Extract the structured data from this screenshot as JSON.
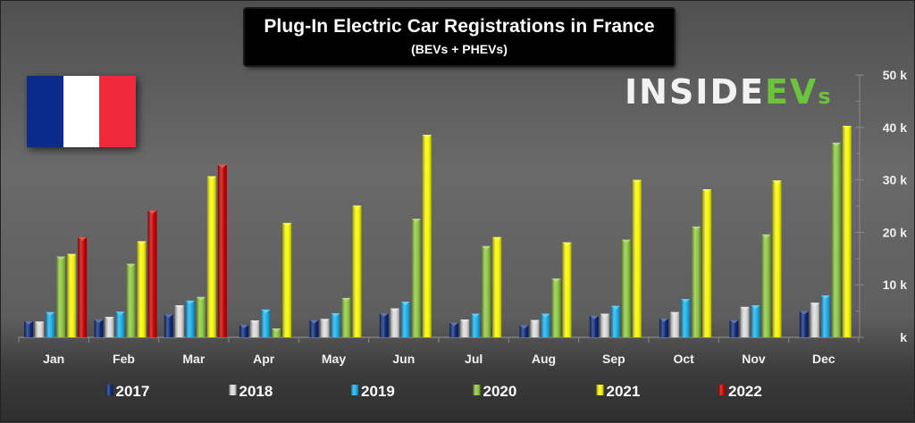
{
  "title": "Plug-In Electric Car Registrations in France",
  "subtitle": "(BEVs + PHEVs)",
  "logo": {
    "part1": "INSIDE",
    "part2": "EV",
    "part3": "s"
  },
  "flag": {
    "country": "France",
    "colors": [
      "#0a2a8c",
      "#ffffff",
      "#ee2a3a"
    ]
  },
  "chart_data": {
    "type": "bar",
    "title": "Plug-In Electric Car Registrations in France",
    "subtitle": "(BEVs + PHEVs)",
    "xlabel": "",
    "ylabel": "",
    "categories": [
      "Jan",
      "Feb",
      "Mar",
      "Apr",
      "May",
      "Jun",
      "Jul",
      "Aug",
      "Sep",
      "Oct",
      "Nov",
      "Dec"
    ],
    "ylim": [
      0,
      50000
    ],
    "yticks": [
      0,
      10000,
      20000,
      30000,
      40000,
      50000
    ],
    "ytick_labels": [
      "k",
      "10 k",
      "20 k",
      "30 k",
      "40 k",
      "50 k"
    ],
    "y_axis_side": "right",
    "grid": false,
    "legend_position": "bottom",
    "series": [
      {
        "name": "2017",
        "color": "#0d2a7a",
        "values": [
          3100,
          3400,
          4400,
          2400,
          3300,
          4600,
          2800,
          2300,
          4100,
          3600,
          3300,
          5000
        ]
      },
      {
        "name": "2018",
        "color": "#d9d9d9",
        "values": [
          3000,
          3900,
          6100,
          3200,
          3500,
          5500,
          3400,
          3300,
          4500,
          4800,
          5800,
          6600
        ]
      },
      {
        "name": "2019",
        "color": "#1aaee8",
        "values": [
          4800,
          4900,
          7000,
          5300,
          4600,
          6800,
          4500,
          4500,
          6000,
          7300,
          6100,
          8000
        ]
      },
      {
        "name": "2020",
        "color": "#8cc63e",
        "values": [
          15400,
          14000,
          7700,
          1700,
          7500,
          22600,
          17400,
          11200,
          18600,
          21100,
          19600,
          37100
        ]
      },
      {
        "name": "2021",
        "color": "#f5f500",
        "values": [
          15900,
          18300,
          30700,
          21800,
          25100,
          38600,
          19100,
          18100,
          30000,
          28200,
          29900,
          40300
        ]
      },
      {
        "name": "2022",
        "color": "#c80000",
        "values": [
          19100,
          24200,
          32900,
          null,
          null,
          null,
          null,
          null,
          null,
          null,
          null,
          null
        ]
      }
    ]
  }
}
